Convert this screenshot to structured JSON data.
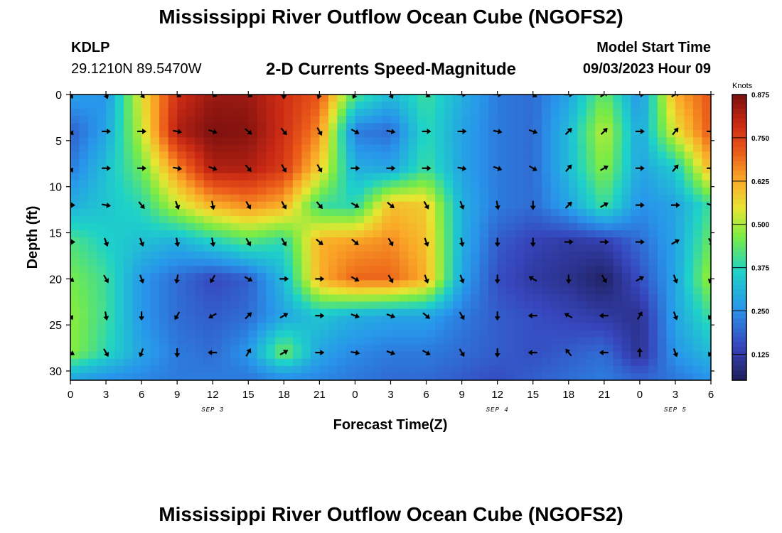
{
  "header": {
    "title": "Mississippi River Outflow Ocean Cube (NGOFS2)",
    "station_id": "KDLP",
    "station_coords": "29.1210N  89.5470W",
    "subtitle": "2-D Currents Speed-Magnitude",
    "model_start_label": "Model Start Time",
    "model_start_value": "09/03/2023 Hour 09"
  },
  "footer": {
    "title": "Mississippi River Outflow Ocean Cube (NGOFS2)"
  },
  "chart_data": {
    "type": "heatmap",
    "xlabel": "Forecast Time(Z)",
    "ylabel": "Depth (ft)",
    "x_tick_labels": [
      "0",
      "3",
      "6",
      "9",
      "12",
      "15",
      "18",
      "21",
      "0",
      "3",
      "6",
      "9",
      "12",
      "15",
      "18",
      "21",
      "0",
      "3",
      "6"
    ],
    "x_range_hours": [
      0,
      54
    ],
    "date_labels": [
      {
        "label": "SEP 3",
        "hour": 12
      },
      {
        "label": "SEP 4",
        "hour": 36
      },
      {
        "label": "SEP 5",
        "hour": 51
      }
    ],
    "y_ticks": [
      "0",
      "5",
      "10",
      "15",
      "20",
      "25",
      "30"
    ],
    "y_range_ft": [
      0,
      31
    ],
    "y_inverted": true,
    "colorbar": {
      "label": "Knots",
      "ticks": [
        "0.875",
        "0.750",
        "0.625",
        "0.500",
        "0.375",
        "0.250",
        "0.125"
      ],
      "range": [
        0.05,
        0.875
      ]
    },
    "hours": [
      0,
      3,
      6,
      9,
      12,
      15,
      18,
      21,
      24,
      27,
      30,
      33,
      36,
      39,
      42,
      45,
      48,
      51,
      54
    ],
    "depths_ft": [
      0,
      4,
      8,
      12,
      16,
      20,
      24,
      28,
      30.5
    ],
    "speed_knots": [
      [
        0.28,
        0.25,
        0.55,
        0.78,
        0.84,
        0.84,
        0.78,
        0.72,
        0.42,
        0.32,
        0.4,
        0.3,
        0.22,
        0.2,
        0.28,
        0.45,
        0.25,
        0.62,
        0.72
      ],
      [
        0.18,
        0.28,
        0.52,
        0.82,
        0.87,
        0.86,
        0.78,
        0.66,
        0.22,
        0.2,
        0.38,
        0.28,
        0.22,
        0.2,
        0.32,
        0.52,
        0.28,
        0.55,
        0.72
      ],
      [
        0.22,
        0.33,
        0.45,
        0.66,
        0.82,
        0.82,
        0.76,
        0.58,
        0.3,
        0.28,
        0.4,
        0.28,
        0.22,
        0.2,
        0.32,
        0.48,
        0.28,
        0.35,
        0.62
      ],
      [
        0.3,
        0.34,
        0.38,
        0.52,
        0.62,
        0.66,
        0.62,
        0.4,
        0.38,
        0.6,
        0.58,
        0.3,
        0.22,
        0.2,
        0.28,
        0.4,
        0.25,
        0.28,
        0.4
      ],
      [
        0.42,
        0.36,
        0.33,
        0.3,
        0.36,
        0.42,
        0.38,
        0.62,
        0.64,
        0.66,
        0.6,
        0.3,
        0.18,
        0.14,
        0.12,
        0.13,
        0.2,
        0.28,
        0.45
      ],
      [
        0.46,
        0.4,
        0.26,
        0.2,
        0.15,
        0.18,
        0.32,
        0.62,
        0.7,
        0.7,
        0.62,
        0.28,
        0.16,
        0.12,
        0.1,
        0.06,
        0.16,
        0.28,
        0.5
      ],
      [
        0.48,
        0.4,
        0.26,
        0.2,
        0.18,
        0.2,
        0.28,
        0.34,
        0.3,
        0.28,
        0.28,
        0.22,
        0.18,
        0.16,
        0.14,
        0.12,
        0.1,
        0.28,
        0.4
      ],
      [
        0.48,
        0.38,
        0.28,
        0.22,
        0.2,
        0.26,
        0.46,
        0.28,
        0.24,
        0.22,
        0.22,
        0.2,
        0.18,
        0.16,
        0.18,
        0.2,
        0.1,
        0.26,
        0.32
      ],
      [
        0.3,
        0.26,
        0.24,
        0.22,
        0.22,
        0.22,
        0.26,
        0.24,
        0.22,
        0.2,
        0.2,
        0.18,
        0.16,
        0.18,
        0.2,
        0.22,
        0.18,
        0.22,
        0.26
      ]
    ],
    "vectors": {
      "hours": [
        0,
        3,
        6,
        9,
        12,
        15,
        18,
        21,
        24,
        27,
        30,
        33,
        36,
        39,
        42,
        45,
        48,
        51,
        54
      ],
      "depths_ft": [
        0,
        4,
        8,
        12,
        16,
        20,
        24,
        28
      ],
      "direction_deg": [
        [
          150,
          160,
          140,
          120,
          110,
          120,
          180,
          200,
          210,
          150,
          120,
          90,
          90,
          120,
          90,
          60,
          90,
          60,
          90
        ],
        [
          140,
          90,
          90,
          100,
          110,
          130,
          140,
          150,
          120,
          100,
          90,
          90,
          100,
          110,
          45,
          45,
          90,
          40,
          90
        ],
        [
          150,
          90,
          90,
          100,
          110,
          140,
          150,
          150,
          90,
          90,
          90,
          100,
          110,
          120,
          40,
          60,
          90,
          40,
          90
        ],
        [
          90,
          100,
          140,
          160,
          170,
          150,
          150,
          140,
          120,
          130,
          150,
          160,
          170,
          180,
          45,
          60,
          90,
          90,
          110
        ],
        [
          90,
          160,
          160,
          170,
          170,
          150,
          150,
          130,
          130,
          150,
          160,
          170,
          180,
          180,
          90,
          90,
          90,
          60,
          150
        ],
        [
          130,
          150,
          160,
          190,
          210,
          120,
          90,
          90,
          120,
          150,
          160,
          160,
          180,
          300,
          180,
          150,
          60,
          160,
          200
        ],
        [
          150,
          170,
          180,
          210,
          240,
          45,
          60,
          90,
          110,
          110,
          130,
          150,
          180,
          270,
          300,
          270,
          30,
          160,
          210
        ],
        [
          120,
          150,
          200,
          180,
          270,
          30,
          60,
          90,
          100,
          110,
          120,
          150,
          180,
          270,
          320,
          270,
          0,
          160,
          210
        ]
      ]
    }
  }
}
